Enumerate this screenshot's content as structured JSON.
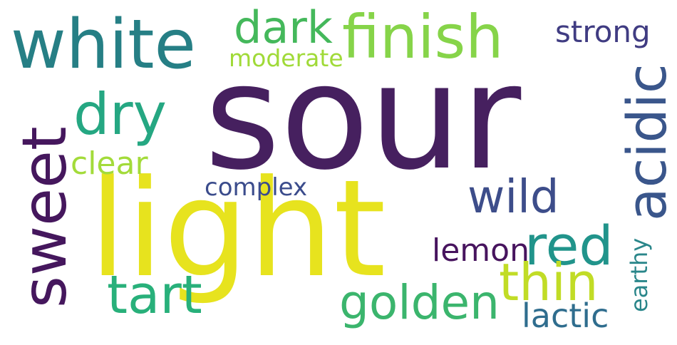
{
  "words": [
    {
      "id": "sour",
      "text": "sour",
      "color": "#46205f"
    },
    {
      "id": "light",
      "text": "light",
      "color": "#e7e31e"
    },
    {
      "id": "white",
      "text": "white",
      "color": "#267f85"
    },
    {
      "id": "finish",
      "text": "finish",
      "color": "#86d449"
    },
    {
      "id": "dark",
      "text": "dark",
      "color": "#44b85b"
    },
    {
      "id": "strong",
      "text": "strong",
      "color": "#403c82"
    },
    {
      "id": "moderate",
      "text": "moderate",
      "color": "#a0da38"
    },
    {
      "id": "dry",
      "text": "dry",
      "color": "#25a782"
    },
    {
      "id": "acidic",
      "text": "acidic",
      "color": "#3a568b"
    },
    {
      "id": "sweet",
      "text": "sweet",
      "color": "#45175d"
    },
    {
      "id": "clear",
      "text": "clear",
      "color": "#a3db3a"
    },
    {
      "id": "complex",
      "text": "complex",
      "color": "#3b4c8c"
    },
    {
      "id": "wild",
      "text": "wild",
      "color": "#3d4d8a"
    },
    {
      "id": "red",
      "text": "red",
      "color": "#21948b"
    },
    {
      "id": "tart",
      "text": "tart",
      "color": "#28b07a"
    },
    {
      "id": "lemon",
      "text": "lemon",
      "color": "#47145e"
    },
    {
      "id": "thin",
      "text": "thin",
      "color": "#c1dc26"
    },
    {
      "id": "golden",
      "text": "golden",
      "color": "#3bb56d"
    },
    {
      "id": "earthy",
      "text": "earthy",
      "color": "#2a868a"
    },
    {
      "id": "lactic",
      "text": "lactic",
      "color": "#2f6d8e"
    }
  ]
}
